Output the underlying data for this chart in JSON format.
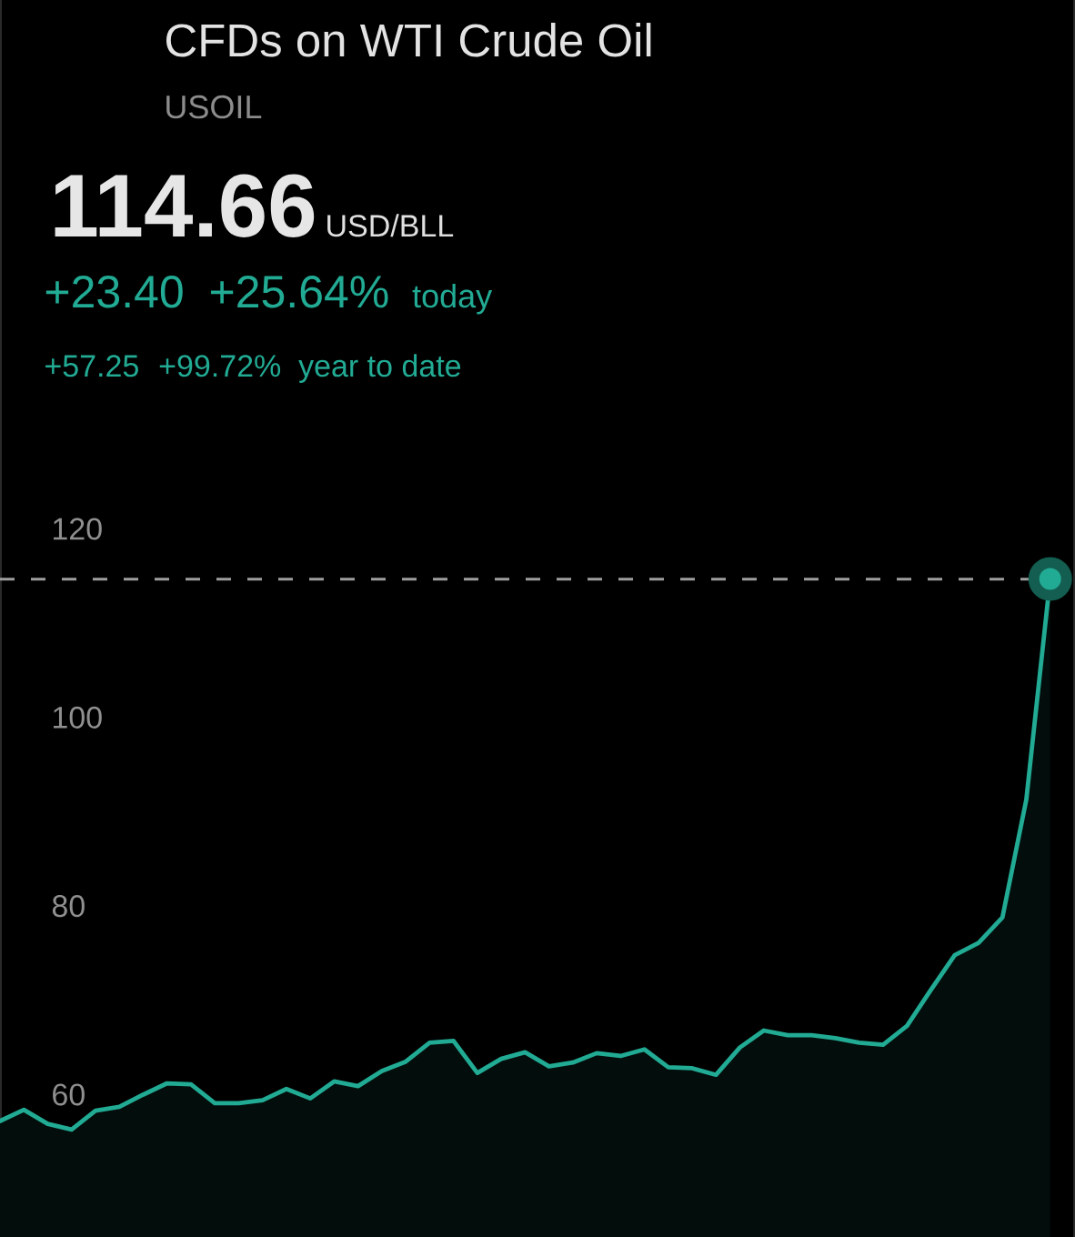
{
  "chart_data": {
    "type": "area",
    "title": "CFDs on WTI Crude Oil",
    "subtitle": "USOIL",
    "annotations": [
      "114.66",
      "USD/BLL",
      "+23.40",
      "+25.64%",
      "today",
      "+57.25",
      "+99.72%",
      "year to date"
    ],
    "categories": [
      null,
      null,
      null,
      null,
      null,
      null,
      null,
      null,
      null,
      null,
      null,
      null,
      null,
      null,
      null,
      null,
      null,
      null,
      null,
      null,
      null,
      null,
      null,
      null,
      null,
      null,
      null,
      null,
      null,
      null,
      null,
      null,
      null,
      null,
      null,
      null,
      null,
      null,
      null,
      null,
      null,
      null,
      null,
      null,
      null
    ],
    "series": [
      {
        "color": "#22ab94",
        "values": [
          57.2,
          58.4,
          56.9,
          56.3,
          58.3,
          58.7,
          60.0,
          61.2,
          61.1,
          59.1,
          59.1,
          59.4,
          60.6,
          59.6,
          61.4,
          60.9,
          62.5,
          63.5,
          65.5,
          65.7,
          62.3,
          63.8,
          64.5,
          63.0,
          63.4,
          64.4,
          64.1,
          64.8,
          62.9,
          62.8,
          62.1,
          65.0,
          66.8,
          66.3,
          66.3,
          66.0,
          65.5,
          65.3,
          67.3,
          71.1,
          74.8,
          76.1,
          78.8,
          91.3,
          114.7
        ]
      },
      {
        "type": "scatter",
        "color": "#22ab94",
        "marker": "circle",
        "values": [
          null,
          null,
          null,
          null,
          null,
          null,
          null,
          null,
          null,
          null,
          null,
          null,
          null,
          null,
          null,
          null,
          null,
          null,
          null,
          null,
          null,
          null,
          null,
          null,
          null,
          null,
          null,
          null,
          null,
          null,
          null,
          null,
          null,
          null,
          null,
          null,
          null,
          null,
          null,
          null,
          null,
          null,
          null,
          null,
          114.7
        ]
      }
    ],
    "ylim": [
      44.9,
      176.1
    ],
    "yticks": [
      60,
      80,
      100,
      120
    ],
    "tick_labels": "y",
    "ref_lines": [
      {
        "axis": "y",
        "value": 114.66,
        "color": "#9e9e9e",
        "line_style": "dashed"
      }
    ]
  }
}
